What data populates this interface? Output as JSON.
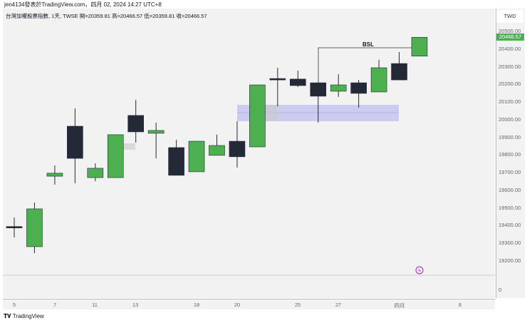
{
  "header": "jen4134發表於TradingView.com，四月 02, 2024 14:27 UTC+8",
  "legend": "台灣加權股票指數, 1天, TWSE  開=20359.81  高=20466.57  低=20359.81  收=20466.57",
  "currency": "TWD",
  "last_price": "20466.57",
  "price_ticks": [
    "20500.00",
    "20400.00",
    "20300.00",
    "20200.00",
    "20100.00",
    "20000.00",
    "19900.00",
    "19800.00",
    "19700.00",
    "19600.00",
    "19500.00",
    "19400.00",
    "19300.00",
    "19200.00"
  ],
  "volume_tick": "0",
  "time_labels": [
    "5",
    "7",
    "11",
    "13",
    "18",
    "20",
    "25",
    "27",
    "四月",
    "8"
  ],
  "bsl_label": "BSL",
  "logo": "TradingView",
  "colors": {
    "up": "#4caf50",
    "down": "#232936",
    "zone": "#b3b3f0"
  },
  "candles": [
    [
      19395,
      19446,
      19333,
      19388
    ],
    [
      19281,
      19531,
      19244,
      19495
    ],
    [
      19680,
      19741,
      19632,
      19697
    ],
    [
      19963,
      20064,
      19640,
      19781
    ],
    [
      19672,
      19753,
      19652,
      19725
    ],
    [
      19672,
      19915,
      19672,
      19915
    ],
    [
      20024,
      20112,
      19870,
      19931
    ],
    [
      19923,
      19983,
      19781,
      19939
    ],
    [
      19842,
      19886,
      19685,
      19685
    ],
    [
      19705,
      19878,
      19705,
      19878
    ],
    [
      19798,
      19915,
      19798,
      19854
    ],
    [
      19878,
      19991,
      19729,
      19790
    ],
    [
      19846,
      20197,
      19846,
      20197
    ],
    [
      20233,
      20294,
      20076,
      20228
    ],
    [
      20230,
      20278,
      20185,
      20193
    ],
    [
      20209,
      20209,
      19983,
      20133
    ],
    [
      20161,
      20258,
      20129,
      20197
    ],
    [
      20209,
      20225,
      20068,
      20149
    ],
    [
      20157,
      20339,
      20157,
      20294
    ],
    [
      20318,
      20383,
      20225,
      20225
    ],
    [
      20359.81,
      20466.57,
      20359.81,
      20466.57
    ]
  ]
}
